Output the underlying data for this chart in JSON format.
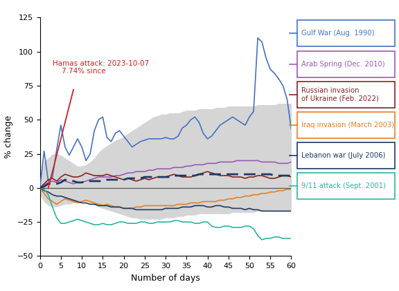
{
  "ylabel": "% change",
  "xlabel": "Number of days",
  "xlim": [
    0,
    60
  ],
  "ylim": [
    -50,
    125
  ],
  "yticks": [
    -50,
    -25,
    0,
    25,
    50,
    75,
    100,
    125
  ],
  "xticks": [
    0,
    5,
    10,
    15,
    20,
    25,
    30,
    35,
    40,
    45,
    50,
    55,
    60
  ],
  "gulf_war": [
    0,
    27,
    5,
    8,
    28,
    46,
    30,
    24,
    30,
    36,
    30,
    20,
    25,
    42,
    50,
    52,
    37,
    34,
    40,
    42,
    38,
    34,
    30,
    32,
    34,
    35,
    36,
    36,
    36,
    36,
    37,
    36,
    36,
    38,
    44,
    46,
    50,
    52,
    48,
    40,
    36,
    38,
    42,
    46,
    48,
    50,
    52,
    50,
    48,
    46,
    52,
    56,
    110,
    107,
    95,
    87,
    84,
    80,
    75,
    65,
    43
  ],
  "arab_spring": [
    0,
    2,
    4,
    5,
    4,
    6,
    5,
    4,
    3,
    4,
    4,
    5,
    6,
    7,
    8,
    8,
    8,
    8,
    9,
    9,
    10,
    11,
    11,
    12,
    12,
    12,
    13,
    13,
    14,
    14,
    14,
    14,
    15,
    15,
    15,
    16,
    16,
    17,
    17,
    17,
    18,
    18,
    18,
    19,
    19,
    19,
    19,
    20,
    20,
    20,
    20,
    20,
    20,
    19,
    19,
    19,
    19,
    18,
    18,
    18,
    19
  ],
  "russia_ukraine": [
    0,
    3,
    6,
    7,
    5,
    8,
    10,
    9,
    8,
    8,
    9,
    11,
    10,
    9,
    9,
    9,
    10,
    9,
    8,
    7,
    6,
    7,
    6,
    5,
    6,
    7,
    6,
    7,
    8,
    8,
    8,
    9,
    10,
    9,
    8,
    8,
    8,
    9,
    10,
    11,
    12,
    11,
    10,
    9,
    9,
    9,
    8,
    8,
    8,
    7,
    8,
    8,
    9,
    9,
    8,
    7,
    7,
    8,
    9,
    9,
    8
  ],
  "median_line": [
    0,
    1,
    3,
    3,
    3,
    4,
    6,
    5,
    5,
    4,
    4,
    5,
    5,
    5,
    5,
    5,
    6,
    6,
    6,
    6,
    6,
    7,
    7,
    7,
    7,
    8,
    8,
    8,
    8,
    8,
    8,
    8,
    9,
    9,
    9,
    9,
    9,
    9,
    10,
    10,
    10,
    10,
    10,
    10,
    10,
    10,
    10,
    10,
    10,
    10,
    10,
    10,
    10,
    10,
    10,
    10,
    9,
    9,
    9,
    9,
    9
  ],
  "iraq_invasion": [
    0,
    -4,
    -8,
    -10,
    -12,
    -10,
    -8,
    -9,
    -10,
    -11,
    -10,
    -9,
    -10,
    -11,
    -12,
    -13,
    -12,
    -13,
    -14,
    -14,
    -15,
    -15,
    -15,
    -14,
    -14,
    -13,
    -13,
    -13,
    -13,
    -13,
    -13,
    -13,
    -13,
    -12,
    -12,
    -12,
    -11,
    -11,
    -11,
    -10,
    -10,
    -10,
    -10,
    -9,
    -9,
    -8,
    -8,
    -7,
    -7,
    -6,
    -6,
    -5,
    -5,
    -4,
    -4,
    -3,
    -3,
    -2,
    -2,
    -1,
    -1
  ],
  "lebanon_war": [
    0,
    -2,
    -3,
    -5,
    -6,
    -6,
    -7,
    -8,
    -9,
    -10,
    -11,
    -11,
    -12,
    -12,
    -13,
    -13,
    -13,
    -14,
    -14,
    -14,
    -15,
    -15,
    -15,
    -16,
    -16,
    -16,
    -16,
    -16,
    -16,
    -16,
    -15,
    -15,
    -15,
    -15,
    -14,
    -14,
    -14,
    -13,
    -13,
    -13,
    -14,
    -14,
    -13,
    -13,
    -14,
    -14,
    -15,
    -15,
    -15,
    -16,
    -15,
    -16,
    -16,
    -17,
    -17,
    -17,
    -17,
    -17,
    -17,
    -17,
    -17
  ],
  "nine_eleven": [
    0,
    -1,
    -5,
    -14,
    -22,
    -26,
    -26,
    -25,
    -24,
    -23,
    -24,
    -25,
    -26,
    -27,
    -27,
    -26,
    -27,
    -27,
    -26,
    -25,
    -25,
    -26,
    -26,
    -26,
    -25,
    -25,
    -26,
    -26,
    -25,
    -25,
    -25,
    -25,
    -24,
    -24,
    -25,
    -25,
    -25,
    -26,
    -26,
    -25,
    -25,
    -28,
    -29,
    -29,
    -28,
    -28,
    -29,
    -29,
    -29,
    -28,
    -28,
    -30,
    -35,
    -38,
    -37,
    -37,
    -36,
    -36,
    -37,
    -37,
    -37
  ],
  "hamas_line": [
    [
      2,
      0
    ],
    [
      8,
      72
    ]
  ],
  "band_upper": [
    8,
    20,
    22,
    25,
    25,
    24,
    22,
    20,
    18,
    16,
    16,
    17,
    19,
    22,
    26,
    29,
    31,
    33,
    35,
    36,
    38,
    40,
    42,
    44,
    46,
    48,
    50,
    52,
    53,
    54,
    54,
    55,
    55,
    55,
    56,
    57,
    57,
    57,
    58,
    58,
    58,
    58,
    59,
    59,
    59,
    60,
    60,
    60,
    60,
    60,
    60,
    60,
    61,
    61,
    61,
    61,
    61,
    62,
    62,
    62,
    62
  ],
  "band_lower": [
    -5,
    -10,
    -13,
    -14,
    -14,
    -13,
    -12,
    -12,
    -11,
    -10,
    -10,
    -10,
    -11,
    -12,
    -14,
    -15,
    -16,
    -17,
    -18,
    -19,
    -20,
    -21,
    -22,
    -22,
    -23,
    -23,
    -23,
    -23,
    -23,
    -23,
    -22,
    -22,
    -22,
    -21,
    -21,
    -20,
    -20,
    -20,
    -19,
    -19,
    -19,
    -19,
    -19,
    -19,
    -19,
    -19,
    -18,
    -18,
    -18,
    -18,
    -18,
    -18,
    -17,
    -17,
    -17,
    -17,
    -17,
    -17,
    -17,
    -17,
    -17
  ],
  "colors": {
    "gulf_war": "#4472c4",
    "arab_spring": "#9b59b6",
    "russia_ukraine": "#8B2020",
    "iraq_invasion": "#e67e22",
    "lebanon_war": "#1f3864",
    "nine_eleven": "#2ab5a0",
    "band_fill": "#c8c8c8",
    "median_line": "#1f3864",
    "hamas_line": "#cc2222",
    "hamas_text": "#cc2222",
    "zero_line": "#555555",
    "background": "#ffffff"
  },
  "legend_items": [
    {
      "label": "Gulf War (Aug. 1990)",
      "color": "#4472c4",
      "border": "#4472c4"
    },
    {
      "label": "Arab Spring (Dec. 2010)",
      "color": "#9b59b6",
      "border": "#9b59b6"
    },
    {
      "label": "Russian invasion\nof Ukraine (Feb. 2022)",
      "color": "#8B2020",
      "border": "#8B2020"
    },
    {
      "label": "Iraq invasion (March 2003)",
      "color": "#e67e22",
      "border": "#e67e22"
    },
    {
      "label": "Lebanon war (July 2006)",
      "color": "#1f3864",
      "border": "#1f3864"
    },
    {
      "label": "9/11 attack (Sept. 2001)",
      "color": "#2ab5a0",
      "border": "#2ab5a0"
    }
  ]
}
